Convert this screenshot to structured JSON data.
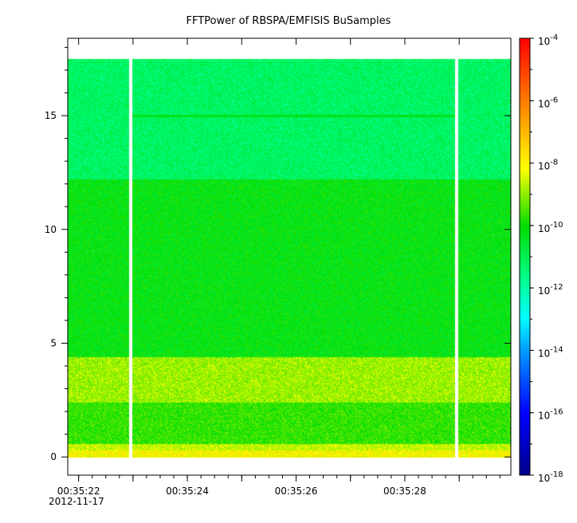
{
  "chart_data": {
    "type": "heatmap",
    "title": "FFTPower of RBSPA/EMFISIS  BuSamples",
    "xlabel": "",
    "ylabel": "",
    "x_tick_labels": [
      "00:35:22",
      "00:35:24",
      "00:35:26",
      "00:35:28"
    ],
    "x_date_label": "2012-11-17",
    "x_range_seconds": [
      21.8,
      29.95
    ],
    "x_ticks_seconds": [
      22,
      23,
      24,
      25,
      26,
      27,
      28,
      29
    ],
    "y_tick_labels": [
      "0",
      "5",
      "10",
      "15"
    ],
    "y_ticks": [
      0,
      5,
      10,
      15
    ],
    "y_range": [
      -0.8,
      18.4
    ],
    "data_y_max": 17.5,
    "gaps_seconds": [
      22.95,
      28.95
    ],
    "colorbar": {
      "scale": "log",
      "range": [
        1e-18,
        0.0001
      ],
      "tick_labels": [
        "10",
        "10",
        "10",
        "10",
        "10",
        "10",
        "10",
        "10"
      ],
      "tick_exponents": [
        "-18",
        "-16",
        "-14",
        "-12",
        "-10",
        "-8",
        "-6",
        "-4"
      ],
      "tick_values_log10": [
        -18,
        -16,
        -14,
        -12,
        -10,
        -8,
        -6,
        -4
      ]
    },
    "bands": [
      {
        "y_range": [
          0.0,
          0.3
        ],
        "log10_power": -8.1
      },
      {
        "y_range": [
          0.3,
          0.6
        ],
        "log10_power": -8.6
      },
      {
        "y_range": [
          0.6,
          2.4
        ],
        "log10_power": -9.7
      },
      {
        "y_range": [
          2.4,
          4.4
        ],
        "log10_power": -8.9
      },
      {
        "y_range": [
          4.4,
          12.2
        ],
        "log10_power": -10.2
      },
      {
        "y_range": [
          12.2,
          17.5
        ],
        "log10_power": -11.2
      }
    ],
    "line_feature": {
      "y": 15.0,
      "log10_power": -10.3
    }
  }
}
